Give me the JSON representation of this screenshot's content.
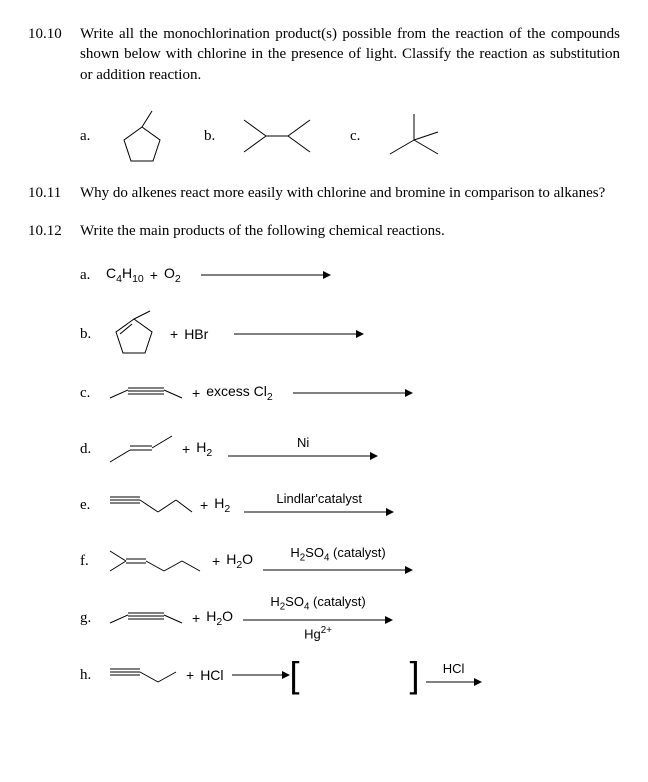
{
  "q10_10": {
    "num": "10.10",
    "text": "Write all the monochlorination product(s) possible from the reaction of the compounds shown below with chlorine in the presence of light.  Classify the reaction as substitution or addition reaction.",
    "a": "a.",
    "b": "b.",
    "c": "c."
  },
  "q10_11": {
    "num": "10.11",
    "text": "Why do alkenes react more easily with chlorine and bromine in comparison to alkanes?"
  },
  "q10_12": {
    "num": "10.12",
    "text": "Write the main products of the following chemical reactions.",
    "a": {
      "label": "a.",
      "reactant_html": "C<sub>4</sub>H<sub>10</sub>",
      "plus": "+",
      "reagent_html": "O<sub>2</sub>"
    },
    "b": {
      "label": "b.",
      "plus": "+",
      "reagent": "HBr"
    },
    "c": {
      "label": "c.",
      "plus": "+",
      "reagent_html": "excess Cl<sub>2</sub>"
    },
    "d": {
      "label": "d.",
      "plus": "+",
      "reagent_html": "H<sub>2</sub>",
      "above": "Ni"
    },
    "e": {
      "label": "e.",
      "plus": "+",
      "reagent_html": "H<sub>2</sub>",
      "above": "Lindlar'catalyst"
    },
    "f": {
      "label": "f.",
      "plus": "+",
      "reagent_html": "H<sub>2</sub>O",
      "above_html": "H<sub>2</sub>SO<sub>4</sub> (catalyst)"
    },
    "g": {
      "label": "g.",
      "plus": "+",
      "reagent_html": "H<sub>2</sub>O",
      "above_html": "H<sub>2</sub>SO<sub>4</sub> (catalyst)",
      "below_html": "Hg<sup>2+</sup>"
    },
    "h": {
      "label": "h.",
      "plus": "+",
      "reagent": "HCl",
      "above2": "HCl"
    }
  },
  "style": {
    "stroke": "#000000",
    "stroke_width": 1,
    "arrow_len": 120,
    "arrow_len_short": 70
  }
}
